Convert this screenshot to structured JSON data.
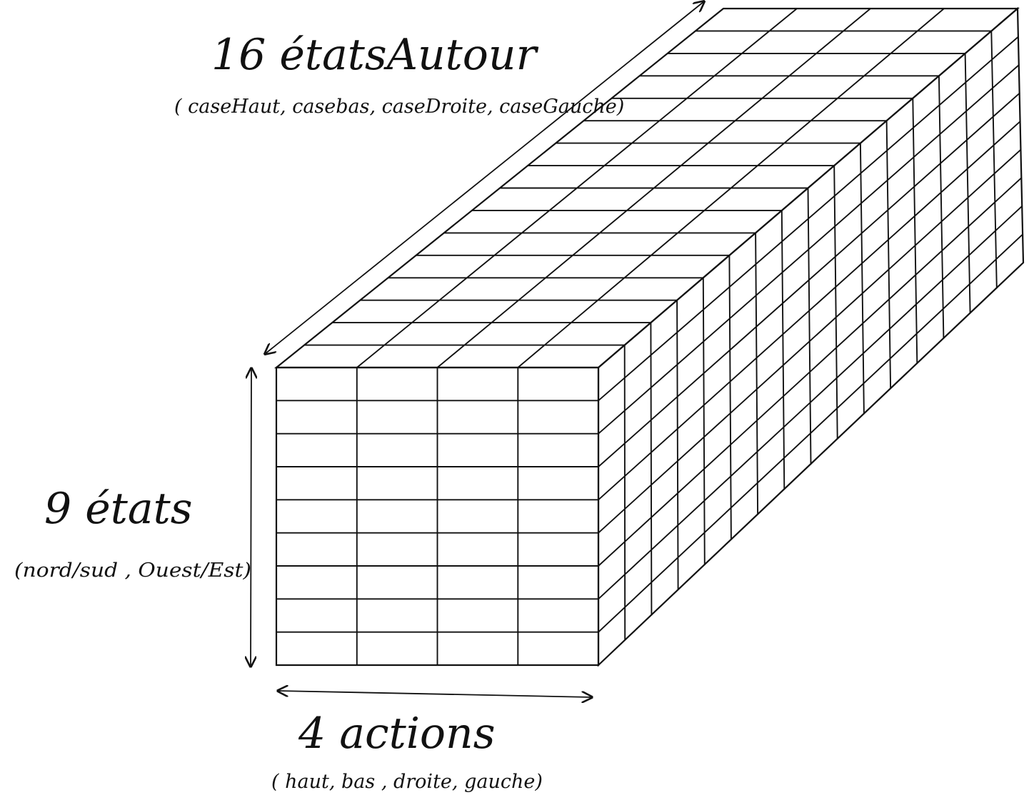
{
  "labels": {
    "top_title": "16 étatsAutour",
    "top_subtitle": "( caseHaut, casebas, caseDroite, caseGauche)",
    "left_title": "9 états",
    "left_subtitle": "(nord/sud , Ouest/Est)",
    "bottom_title": "4 actions",
    "bottom_subtitle": "( haut, bas , droite, gauche)"
  },
  "grid": {
    "front_columns": 4,
    "front_rows": 9,
    "depth_slices": 16
  },
  "colors": {
    "ink": "#111111",
    "background": "#ffffff"
  }
}
